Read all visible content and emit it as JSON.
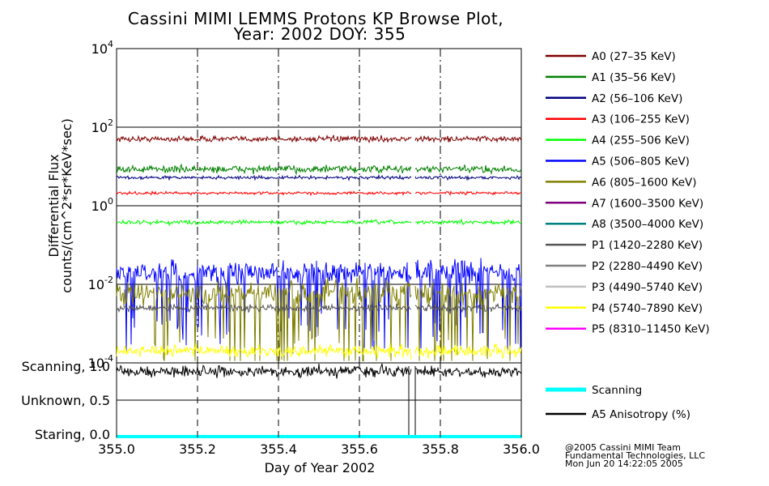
{
  "chart_data": {
    "type": "line",
    "title": "Cassini MIMI LEMMS Protons KP Browse Plot,",
    "subtitle": "Year: 2002 DOY: 355",
    "xlabel": "Day of Year 2002",
    "ylabel_line1": "Differential Flux",
    "ylabel_line2": "counts/(cm^2*sr*KeV*sec)",
    "xlim": [
      355.0,
      356.0
    ],
    "x_ticks": [
      "355.0",
      "355.2",
      "355.4",
      "355.6",
      "355.8",
      "356.0"
    ],
    "x_tick_values": [
      355.0,
      355.2,
      355.4,
      355.6,
      355.8,
      356.0
    ],
    "ylim_log10": [
      -4,
      4
    ],
    "y_ticks": [
      {
        "base": "10",
        "exp": "4",
        "log": 4
      },
      {
        "base": "10",
        "exp": "2",
        "log": 2
      },
      {
        "base": "10",
        "exp": "0",
        "log": 0
      },
      {
        "base": "10",
        "exp": "-2",
        "log": -2
      },
      {
        "base": "10",
        "exp": "-4",
        "log": -4
      }
    ],
    "data_gap": [
      355.728,
      355.738
    ],
    "series": [
      {
        "name": "A0 (27–35 KeV)",
        "color": "#800000",
        "level": 50,
        "noise": 0.07
      },
      {
        "name": "A1 (35–56 KeV)",
        "color": "#008000",
        "level": 8.5,
        "noise": 0.09
      },
      {
        "name": "A2 (56–106 KeV)",
        "color": "#000080",
        "level": 5.2,
        "noise": 0.04
      },
      {
        "name": "A3 (106–255 KeV)",
        "color": "#ff0000",
        "level": 2.1,
        "noise": 0.035
      },
      {
        "name": "A4 (255–506 KeV)",
        "color": "#00ff00",
        "level": 0.38,
        "noise": 0.05
      },
      {
        "name": "A5 (506–805 KeV)",
        "color": "#0000ff",
        "level": 0.02,
        "noise": 0.45
      },
      {
        "name": "A6 (805–1600 KeV)",
        "color": "#808000",
        "level": 0.006,
        "noise": 0.5
      },
      {
        "name": "A7 (1600–3500 KeV)",
        "color": "#800080",
        "level": null,
        "noise": 0
      },
      {
        "name": "A8 (3500–4000 KeV)",
        "color": "#008080",
        "level": null,
        "noise": 0
      },
      {
        "name": "P1 (1420–2280 KeV)",
        "color": "#555555",
        "level": 0.0025,
        "noise": 0.08
      },
      {
        "name": "P2 (2280–4490 KeV)",
        "color": "#808080",
        "level": null,
        "noise": 0
      },
      {
        "name": "P3 (4490–5740 KeV)",
        "color": "#c0c0c0",
        "level": null,
        "noise": 0
      },
      {
        "name": "P4 (5740–7890 KeV)",
        "color": "#ffff00",
        "level": 0.0002,
        "noise": 0.15
      },
      {
        "name": "P5 (8310–11450 KeV)",
        "color": "#ff00ff",
        "level": null,
        "noise": 0
      }
    ],
    "lower_panel": {
      "y_ticks": [
        {
          "label": "Scanning, 1.0",
          "value": 1.0
        },
        {
          "label": "Unknown, 0.5",
          "value": 0.5
        },
        {
          "label": "Staring, 0.0",
          "value": 0.0
        }
      ],
      "series": [
        {
          "name": "Scanning",
          "color": "#00ffff",
          "value": 0.0
        },
        {
          "name": "A5 Anisotropy (%)",
          "color": "#000000",
          "mean": 0.92,
          "spread": 0.08
        }
      ]
    },
    "credits": [
      "@2005 Cassini MIMI Team",
      "Fundamental Technologies, LLC",
      "Mon Jun 20 14:22:05 2005"
    ]
  }
}
